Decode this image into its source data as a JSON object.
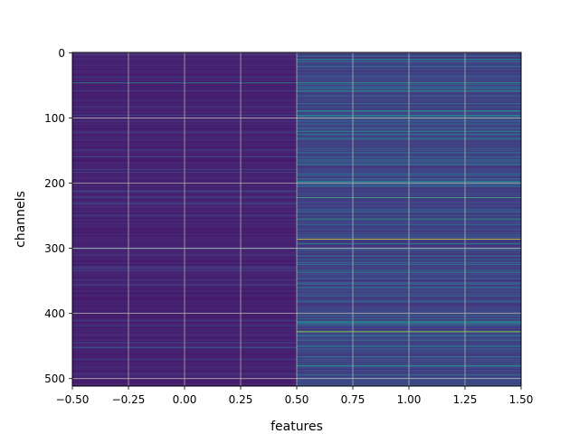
{
  "chart_data": {
    "type": "heatmap",
    "xlabel": "features",
    "ylabel": "channels",
    "xlim": [
      -0.5,
      1.5
    ],
    "ylim": [
      511.5,
      -0.5
    ],
    "y_inverted": true,
    "grid": true,
    "colormap": "viridis",
    "columns": [
      0,
      1
    ],
    "rows": 512,
    "x_ticks": [
      -0.5,
      -0.25,
      0.0,
      0.25,
      0.5,
      0.75,
      1.0,
      1.25,
      1.5
    ],
    "x_tick_labels": [
      "−0.50",
      "−0.25",
      "0.00",
      "0.25",
      "0.50",
      "0.75",
      "1.00",
      "1.25",
      "1.50"
    ],
    "y_ticks": [
      0,
      100,
      200,
      300,
      400,
      500
    ],
    "y_tick_labels": [
      "0",
      "100",
      "200",
      "300",
      "400",
      "500"
    ],
    "column_base_level": [
      0.07,
      0.15
    ],
    "bright_rows": [
      {
        "channel": 5,
        "col0": 0.08,
        "col1": 0.45
      },
      {
        "channel": 46,
        "col0": 0.42,
        "col1": 0.55
      },
      {
        "channel": 101,
        "col0": 0.1,
        "col1": 0.35
      },
      {
        "channel": 160,
        "col0": 0.25,
        "col1": 0.4
      },
      {
        "channel": 188,
        "col0": 0.1,
        "col1": 0.38
      },
      {
        "channel": 198,
        "col0": 0.1,
        "col1": 0.5
      },
      {
        "channel": 222,
        "col0": 0.12,
        "col1": 0.68
      },
      {
        "channel": 256,
        "col0": 0.12,
        "col1": 0.55
      },
      {
        "channel": 286,
        "col0": 0.12,
        "col1": 0.95
      },
      {
        "channel": 293,
        "col0": 0.1,
        "col1": 0.45
      },
      {
        "channel": 322,
        "col0": 0.1,
        "col1": 0.35
      },
      {
        "channel": 398,
        "col0": 0.1,
        "col1": 0.35
      },
      {
        "channel": 428,
        "col0": 0.1,
        "col1": 0.88
      },
      {
        "channel": 480,
        "col0": 0.1,
        "col1": 0.55
      }
    ]
  }
}
